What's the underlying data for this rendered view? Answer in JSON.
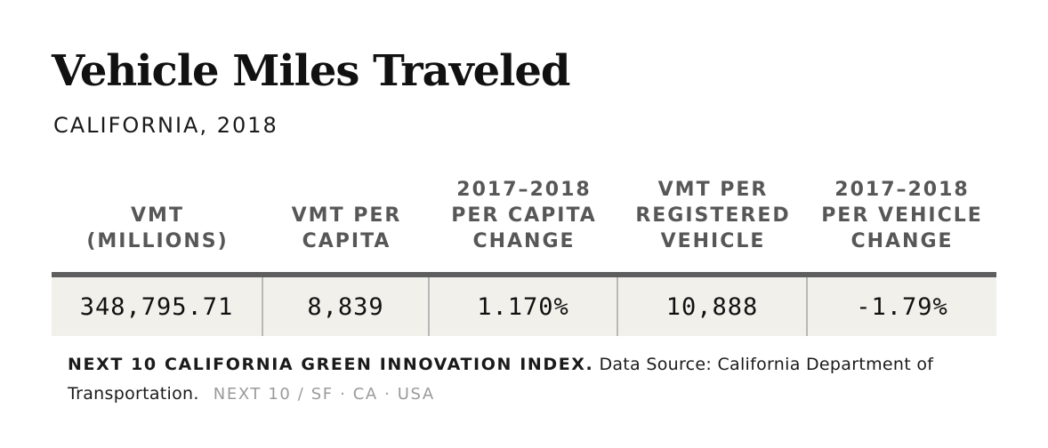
{
  "title": "Vehicle Miles Traveled",
  "subtitle": "CALIFORNIA, 2018",
  "chart_data": {
    "type": "table",
    "title": "Vehicle Miles Traveled",
    "subtitle": "CALIFORNIA, 2018",
    "columns": [
      {
        "header": "VMT\n(MILLIONS)",
        "value": "348,795.71"
      },
      {
        "header": "VMT PER\nCAPITA",
        "value": "8,839"
      },
      {
        "header": "2017–2018\nPER CAPITA\nCHANGE",
        "value": "1.170%"
      },
      {
        "header": "VMT PER\nREGISTERED\nVEHICLE",
        "value": "10,888"
      },
      {
        "header": "2017–2018\nPER VEHICLE\nCHANGE",
        "value": "-1.79%"
      }
    ]
  },
  "footnote": {
    "org": "NEXT 10 CALIFORNIA GREEN INNOVATION INDEX.",
    "source": "Data Source: California Department of Transportation.",
    "brand": "NEXT 10  /  SF · CA · USA"
  }
}
